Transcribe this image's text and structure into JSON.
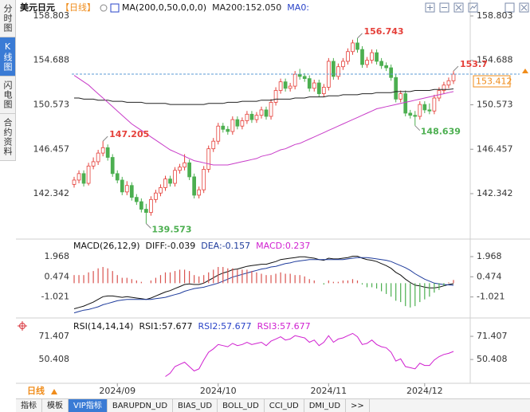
{
  "sidebar": {
    "tabs": [
      "分时图",
      "K线图",
      "闪电图",
      "合约资料"
    ],
    "active": 1
  },
  "period_button": "日线",
  "bottom_tabs": {
    "items": [
      "指标",
      "模板",
      "VIP指标",
      "BARUPDN_UD",
      "BIAS_UD",
      "BOLL_UD",
      "CCI_UD",
      "DMI_UD",
      ">>"
    ],
    "active": 2
  },
  "chart_data": [
    {
      "type": "candlestick",
      "title": "美元日元",
      "period": "【日线】",
      "indicator": "MA(200,0,50,0,0,0)",
      "up_color": "#e5403a",
      "down_color": "#4caf50",
      "ylim": [
        138.43,
        159.246
      ],
      "yticks": [
        142.342,
        146.457,
        150.573,
        154.688,
        158.803
      ],
      "categories": [
        null,
        null,
        null,
        null,
        null,
        null,
        null,
        null,
        null,
        "2024/09",
        null,
        null,
        null,
        null,
        null,
        null,
        null,
        null,
        null,
        null,
        null,
        null,
        null,
        null,
        null,
        null,
        null,
        null,
        null,
        null,
        "2024/10",
        null,
        null,
        null,
        null,
        null,
        null,
        null,
        null,
        null,
        null,
        null,
        null,
        null,
        null,
        null,
        null,
        null,
        null,
        null,
        null,
        null,
        null,
        "2024/11",
        null,
        null,
        null,
        null,
        null,
        null,
        null,
        null,
        null,
        null,
        null,
        null,
        null,
        null,
        null,
        null,
        null,
        null,
        null,
        "2024/12",
        null,
        null,
        null,
        null,
        null,
        null
      ],
      "candles": [
        [
          143.2,
          143.9,
          142.9,
          143.6
        ],
        [
          143.6,
          144.5,
          143.3,
          144.2
        ],
        [
          144.2,
          144.5,
          143.0,
          143.3
        ],
        [
          143.3,
          145.2,
          143.1,
          144.9
        ],
        [
          144.9,
          145.7,
          144.6,
          145.3
        ],
        [
          145.3,
          146.4,
          145.0,
          146.1
        ],
        [
          146.1,
          147.205,
          145.8,
          146.6
        ],
        [
          146.6,
          146.9,
          145.4,
          145.7
        ],
        [
          145.7,
          146.0,
          143.9,
          144.2
        ],
        [
          144.2,
          144.5,
          143.3,
          143.6
        ],
        [
          143.6,
          143.9,
          142.2,
          142.5
        ],
        [
          142.5,
          143.5,
          142.2,
          143.1
        ],
        [
          143.1,
          143.4,
          141.7,
          142.0
        ],
        [
          142.0,
          142.3,
          141.3,
          141.6
        ],
        [
          141.6,
          141.9,
          140.6,
          140.9
        ],
        [
          140.9,
          141.4,
          139.573,
          140.6
        ],
        [
          140.6,
          142.1,
          140.3,
          141.8
        ],
        [
          141.8,
          142.7,
          141.5,
          142.4
        ],
        [
          142.4,
          143.2,
          142.1,
          142.9
        ],
        [
          142.9,
          144.0,
          142.6,
          143.7
        ],
        [
          143.7,
          144.0,
          143.0,
          143.3
        ],
        [
          143.3,
          144.8,
          143.0,
          144.5
        ],
        [
          144.5,
          145.1,
          144.2,
          144.8
        ],
        [
          144.8,
          146.0,
          144.5,
          145.2
        ],
        [
          145.2,
          145.5,
          143.6,
          143.9
        ],
        [
          143.9,
          144.2,
          141.9,
          142.2
        ],
        [
          142.2,
          143.0,
          141.9,
          142.7
        ],
        [
          142.7,
          144.9,
          142.4,
          144.6
        ],
        [
          144.6,
          146.8,
          144.3,
          146.5
        ],
        [
          146.5,
          147.5,
          146.2,
          147.2
        ],
        [
          147.2,
          148.9,
          146.9,
          148.6
        ],
        [
          148.6,
          148.9,
          148.0,
          148.3
        ],
        [
          148.3,
          148.6,
          147.8,
          148.1
        ],
        [
          148.1,
          149.5,
          147.8,
          149.2
        ],
        [
          149.2,
          149.5,
          148.3,
          148.6
        ],
        [
          148.6,
          149.4,
          148.3,
          149.1
        ],
        [
          149.1,
          150.0,
          148.8,
          149.7
        ],
        [
          149.7,
          150.0,
          148.9,
          149.2
        ],
        [
          149.2,
          149.9,
          148.9,
          149.6
        ],
        [
          149.6,
          150.4,
          149.3,
          150.1
        ],
        [
          150.1,
          150.4,
          149.2,
          149.5
        ],
        [
          149.5,
          151.1,
          149.2,
          150.8
        ],
        [
          150.8,
          152.2,
          150.5,
          151.9
        ],
        [
          151.9,
          153.0,
          151.6,
          152.7
        ],
        [
          152.7,
          153.0,
          151.8,
          152.1
        ],
        [
          152.1,
          152.6,
          151.8,
          152.3
        ],
        [
          152.3,
          153.7,
          152.0,
          153.4
        ],
        [
          153.4,
          153.9,
          152.9,
          153.2
        ],
        [
          153.2,
          153.5,
          152.7,
          153.0
        ],
        [
          153.0,
          153.3,
          151.8,
          152.1
        ],
        [
          152.1,
          152.9,
          151.8,
          152.6
        ],
        [
          152.6,
          152.9,
          151.3,
          151.6
        ],
        [
          151.6,
          152.5,
          151.3,
          152.2
        ],
        [
          152.2,
          154.9,
          151.9,
          154.6
        ],
        [
          154.6,
          154.9,
          152.9,
          153.2
        ],
        [
          153.2,
          154.4,
          152.9,
          154.1
        ],
        [
          154.1,
          154.9,
          153.8,
          154.6
        ],
        [
          154.6,
          155.8,
          154.3,
          155.5
        ],
        [
          155.5,
          156.6,
          155.2,
          156.3
        ],
        [
          156.3,
          156.743,
          155.4,
          155.7
        ],
        [
          155.7,
          156.0,
          154.0,
          154.3
        ],
        [
          154.3,
          155.0,
          154.0,
          154.7
        ],
        [
          154.7,
          155.7,
          154.4,
          155.4
        ],
        [
          155.4,
          155.7,
          154.3,
          154.6
        ],
        [
          154.6,
          154.9,
          153.9,
          154.2
        ],
        [
          154.2,
          154.5,
          153.7,
          154.0
        ],
        [
          154.0,
          154.3,
          152.8,
          153.1
        ],
        [
          153.1,
          153.4,
          150.8,
          151.1
        ],
        [
          151.1,
          151.9,
          150.8,
          151.6
        ],
        [
          151.6,
          151.9,
          149.5,
          149.8
        ],
        [
          149.8,
          150.1,
          149.3,
          149.6
        ],
        [
          149.6,
          150.0,
          148.639,
          149.5
        ],
        [
          149.5,
          150.9,
          149.2,
          150.6
        ],
        [
          150.6,
          150.9,
          149.8,
          150.1
        ],
        [
          150.1,
          150.7,
          149.7,
          150.0
        ],
        [
          150.0,
          151.5,
          149.7,
          151.2
        ],
        [
          151.2,
          152.2,
          150.9,
          151.9
        ],
        [
          151.9,
          152.7,
          151.6,
          152.4
        ],
        [
          152.4,
          153.1,
          152.1,
          152.8
        ],
        [
          152.8,
          153.7,
          152.5,
          153.412
        ]
      ],
      "series": [
        {
          "name": "MA200:152.050",
          "color": "#222222",
          "label_color": "#222222",
          "values": [
            151.2,
            151.2,
            151.1,
            151.1,
            151.1,
            151.0,
            151.0,
            151.0,
            150.9,
            150.9,
            150.9,
            150.8,
            150.8,
            150.8,
            150.8,
            150.7,
            150.7,
            150.7,
            150.7,
            150.7,
            150.6,
            150.6,
            150.6,
            150.6,
            150.6,
            150.6,
            150.6,
            150.6,
            150.7,
            150.7,
            150.7,
            150.7,
            150.8,
            150.8,
            150.8,
            150.9,
            150.9,
            150.9,
            150.9,
            151.0,
            151.0,
            151.0,
            151.1,
            151.1,
            151.1,
            151.1,
            151.2,
            151.2,
            151.2,
            151.3,
            151.3,
            151.3,
            151.3,
            151.4,
            151.4,
            151.4,
            151.5,
            151.5,
            151.5,
            151.5,
            151.6,
            151.6,
            151.6,
            151.7,
            151.7,
            151.7,
            151.7,
            151.8,
            151.8,
            151.8,
            151.8,
            151.9,
            151.9,
            151.9,
            151.9,
            152.0,
            152.0,
            152.0,
            152.0,
            152.05
          ]
        },
        {
          "name": "MA0:",
          "color": "#c83cc8",
          "label_color": "#2a44c8",
          "values": [
            153.3,
            153.0,
            152.7,
            152.4,
            152.0,
            151.6,
            151.2,
            150.8,
            150.4,
            150.0,
            149.6,
            149.2,
            148.8,
            148.5,
            148.2,
            147.9,
            147.6,
            147.3,
            147.0,
            146.7,
            146.4,
            146.2,
            146.0,
            145.8,
            145.6,
            145.4,
            145.3,
            145.2,
            145.1,
            145.0,
            145.0,
            145.0,
            145.0,
            145.1,
            145.2,
            145.3,
            145.4,
            145.5,
            145.6,
            145.8,
            145.9,
            146.0,
            146.2,
            146.4,
            146.5,
            146.7,
            146.9,
            147.0,
            147.2,
            147.4,
            147.6,
            147.8,
            148.0,
            148.2,
            148.4,
            148.6,
            148.8,
            149.0,
            149.2,
            149.4,
            149.6,
            149.8,
            150.0,
            150.2,
            150.3,
            150.4,
            150.5,
            150.6,
            150.7,
            150.8,
            150.9,
            151.0,
            151.1,
            151.2,
            151.3,
            151.4,
            151.5,
            151.6,
            151.7,
            151.8
          ]
        }
      ]
    },
    {
      "type": "macd",
      "title": "MACD(26,12,9)",
      "ylim": [
        -2.4,
        2.5
      ],
      "yticks": [
        -1.021,
        0.474,
        1.968
      ],
      "series": [
        {
          "name": "DIFF:-0.039",
          "color": "#111111",
          "values": [
            -1.9,
            -1.8,
            -1.7,
            -1.55,
            -1.4,
            -1.2,
            -1.0,
            -0.95,
            -0.95,
            -1.0,
            -1.05,
            -1.0,
            -1.05,
            -1.1,
            -1.15,
            -1.2,
            -1.1,
            -0.95,
            -0.8,
            -0.65,
            -0.55,
            -0.4,
            -0.25,
            -0.1,
            -0.05,
            -0.1,
            -0.1,
            0,
            0.2,
            0.4,
            0.6,
            0.75,
            0.85,
            1.0,
            1.05,
            1.15,
            1.25,
            1.3,
            1.35,
            1.4,
            1.4,
            1.5,
            1.6,
            1.75,
            1.8,
            1.85,
            1.9,
            1.95,
            1.95,
            1.9,
            1.85,
            1.75,
            1.7,
            1.85,
            1.8,
            1.8,
            1.85,
            1.9,
            2.0,
            2.0,
            1.85,
            1.75,
            1.7,
            1.6,
            1.45,
            1.3,
            1.1,
            0.8,
            0.6,
            0.3,
            0.05,
            -0.15,
            -0.2,
            -0.3,
            -0.35,
            -0.35,
            -0.3,
            -0.2,
            -0.1,
            -0.039
          ]
        },
        {
          "name": "DEA:-0.157",
          "color": "#1f3c9c",
          "values": [
            -2.2,
            -2.1,
            -2.0,
            -1.95,
            -1.85,
            -1.75,
            -1.6,
            -1.5,
            -1.4,
            -1.3,
            -1.25,
            -1.2,
            -1.2,
            -1.2,
            -1.2,
            -1.2,
            -1.2,
            -1.15,
            -1.1,
            -1.05,
            -0.95,
            -0.85,
            -0.75,
            -0.6,
            -0.5,
            -0.4,
            -0.35,
            -0.3,
            -0.2,
            -0.1,
            0,
            0.15,
            0.3,
            0.45,
            0.55,
            0.65,
            0.75,
            0.85,
            0.95,
            1.05,
            1.1,
            1.2,
            1.25,
            1.35,
            1.45,
            1.5,
            1.6,
            1.65,
            1.7,
            1.75,
            1.75,
            1.75,
            1.75,
            1.75,
            1.75,
            1.75,
            1.75,
            1.8,
            1.85,
            1.9,
            1.9,
            1.9,
            1.85,
            1.8,
            1.75,
            1.7,
            1.6,
            1.45,
            1.3,
            1.15,
            0.95,
            0.7,
            0.5,
            0.3,
            0.15,
            0,
            -0.05,
            -0.1,
            -0.13,
            -0.157
          ]
        },
        {
          "name": "MACD:0.237",
          "color": "#d020d0",
          "up_color": "#d9534f",
          "down_color": "#4caf50",
          "values": [
            0.6,
            0.6,
            0.6,
            0.8,
            0.9,
            1.1,
            1.2,
            1.1,
            0.9,
            0.6,
            0.4,
            0.4,
            0.3,
            0.2,
            0.1,
            0,
            0.2,
            0.4,
            0.6,
            0.8,
            0.8,
            0.9,
            1.0,
            1.0,
            0.9,
            0.6,
            0.5,
            0.6,
            0.8,
            1.0,
            1.2,
            1.2,
            1.1,
            1.1,
            1.0,
            1.0,
            1.0,
            0.9,
            0.8,
            0.7,
            0.6,
            0.6,
            0.7,
            0.8,
            0.7,
            0.7,
            0.6,
            0.6,
            0.5,
            0.3,
            0.2,
            0,
            -0.1,
            0.2,
            0.1,
            0.1,
            0.2,
            0.2,
            0.3,
            0.2,
            -0.1,
            -0.3,
            -0.3,
            -0.4,
            -0.6,
            -0.8,
            -1.0,
            -1.3,
            -1.4,
            -1.7,
            -1.8,
            -1.7,
            -1.4,
            -1.2,
            -1.0,
            -0.7,
            -0.5,
            -0.2,
            0.06,
            0.237
          ]
        }
      ]
    },
    {
      "type": "line",
      "title": "RSI(14,14,14)",
      "ylim": [
        31,
        83.7
      ],
      "yticks": [
        50.408,
        71.407
      ],
      "series": [
        {
          "name": "RSI1:57.677",
          "color": "#111111"
        },
        {
          "name": "RSI2:57.677",
          "color": "#2a44c8"
        },
        {
          "name": "RSI3:57.677",
          "color": "#d020d0",
          "values": [
            null,
            null,
            null,
            null,
            null,
            null,
            null,
            null,
            null,
            null,
            null,
            null,
            null,
            null,
            null,
            null,
            null,
            null,
            null,
            35,
            38,
            44,
            46,
            48,
            44,
            40,
            42,
            50,
            57,
            60,
            64,
            63,
            62,
            65,
            63,
            64,
            66,
            64,
            65,
            66,
            63,
            67,
            69,
            71,
            68,
            69,
            72,
            71,
            70,
            66,
            68,
            63,
            66,
            72,
            66,
            69,
            70,
            72,
            74,
            71,
            64,
            65,
            68,
            64,
            62,
            61,
            57,
            49,
            51,
            44,
            43,
            42,
            47,
            45,
            45,
            50,
            53,
            55,
            56,
            57.677
          ]
        }
      ]
    }
  ]
}
